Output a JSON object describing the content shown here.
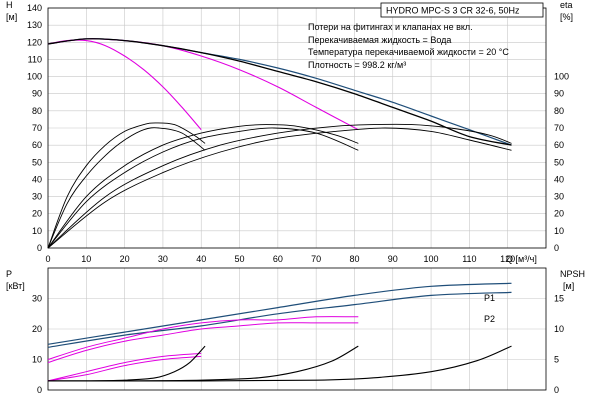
{
  "title": "HYDRO MPC-S 3 CR 32-6, 50Hz",
  "notes": [
    "Потери на фитингах и клапанах не вкл.",
    "Перекачиваемая жидкость = Вода",
    "Температура перекачиваемой жидкости = 20 °C",
    "Плотность = 998.2 кг/м³"
  ],
  "colors": {
    "head": "#000000",
    "system": "#1f4e79",
    "eta": "#e000e0",
    "grid": "#c8c8c8"
  },
  "chart_data": [
    {
      "type": "line",
      "name": "top",
      "y_label_name": "H",
      "y_unit": "[м]",
      "y_right_name": "eta",
      "y_right_unit": "[%]",
      "xlim": [
        0,
        130
      ],
      "ylim": [
        0,
        140
      ],
      "x_ticks": [
        0,
        10,
        20,
        30,
        40,
        50,
        60,
        70,
        80,
        90,
        100,
        110,
        120
      ],
      "x_axis_label": "Q [м³/ч]",
      "y_ticks": [
        0,
        10,
        20,
        30,
        40,
        50,
        60,
        70,
        80,
        90,
        100,
        110,
        120,
        130,
        140
      ],
      "y_right_ticks": [
        0,
        10,
        20,
        30,
        40,
        50,
        60,
        70,
        80,
        90,
        100
      ],
      "series": [
        {
          "role": "system",
          "values": [
            [
              0,
              119
            ],
            [
              10,
              122
            ],
            [
              20,
              121
            ],
            [
              30,
              118
            ],
            [
              40,
              114
            ],
            [
              50,
              110
            ],
            [
              60,
              105
            ],
            [
              70,
              99
            ],
            [
              80,
              92
            ],
            [
              90,
              85
            ],
            [
              100,
              77
            ],
            [
              110,
              69
            ],
            [
              121,
              60
            ]
          ]
        },
        {
          "role": "head-1",
          "values": [
            [
              0,
              119
            ],
            [
              5,
              121
            ],
            [
              10,
              121
            ],
            [
              15,
              118
            ],
            [
              20,
              112
            ],
            [
              25,
              104
            ],
            [
              30,
              94
            ],
            [
              35,
              82
            ],
            [
              40,
              69
            ]
          ]
        },
        {
          "role": "head-2",
          "values": [
            [
              0,
              119
            ],
            [
              10,
              122
            ],
            [
              20,
              121
            ],
            [
              30,
              118
            ],
            [
              40,
              112
            ],
            [
              50,
              104
            ],
            [
              60,
              94
            ],
            [
              70,
              82
            ],
            [
              81,
              69
            ]
          ]
        },
        {
          "role": "head-3",
          "values": [
            [
              0,
              119
            ],
            [
              10,
              122
            ],
            [
              20,
              121
            ],
            [
              30,
              118
            ],
            [
              40,
              114
            ],
            [
              50,
              109
            ],
            [
              60,
              103
            ],
            [
              70,
              97
            ],
            [
              80,
              90
            ],
            [
              90,
              82
            ],
            [
              100,
              74
            ],
            [
              110,
              65
            ],
            [
              121,
              60
            ]
          ]
        },
        {
          "role": "eta",
          "values": [
            [
              0,
              0
            ],
            [
              5,
              30
            ],
            [
              10,
              48
            ],
            [
              15,
              60
            ],
            [
              20,
              68
            ],
            [
              25,
              72
            ],
            [
              28,
              73
            ],
            [
              33,
              72
            ],
            [
              38,
              66
            ],
            [
              41,
              61
            ]
          ]
        },
        {
          "role": "eta",
          "values": [
            [
              0,
              0
            ],
            [
              5,
              26
            ],
            [
              10,
              42
            ],
            [
              15,
              54
            ],
            [
              20,
              63
            ],
            [
              25,
              69
            ],
            [
              29,
              70
            ],
            [
              35,
              67
            ],
            [
              41,
              57
            ]
          ]
        },
        {
          "role": "eta",
          "values": [
            [
              0,
              0
            ],
            [
              10,
              30
            ],
            [
              20,
              48
            ],
            [
              30,
              60
            ],
            [
              40,
              67
            ],
            [
              50,
              71
            ],
            [
              57,
              72
            ],
            [
              65,
              71
            ],
            [
              75,
              66
            ],
            [
              81,
              61
            ]
          ]
        },
        {
          "role": "eta",
          "values": [
            [
              0,
              0
            ],
            [
              10,
              27
            ],
            [
              20,
              44
            ],
            [
              30,
              56
            ],
            [
              40,
              64
            ],
            [
              50,
              68
            ],
            [
              59,
              70
            ],
            [
              70,
              67
            ],
            [
              81,
              57
            ]
          ]
        },
        {
          "role": "eta",
          "values": [
            [
              0,
              0
            ],
            [
              15,
              30
            ],
            [
              30,
              48
            ],
            [
              45,
              60
            ],
            [
              60,
              67
            ],
            [
              75,
              71
            ],
            [
              85,
              72
            ],
            [
              95,
              72
            ],
            [
              105,
              70
            ],
            [
              115,
              66
            ],
            [
              121,
              61
            ]
          ]
        },
        {
          "role": "eta",
          "values": [
            [
              0,
              0
            ],
            [
              15,
              27
            ],
            [
              30,
              44
            ],
            [
              45,
              56
            ],
            [
              60,
              64
            ],
            [
              75,
              68
            ],
            [
              88,
              70
            ],
            [
              100,
              68
            ],
            [
              110,
              63
            ],
            [
              121,
              57
            ]
          ]
        }
      ]
    },
    {
      "type": "line",
      "name": "bottom",
      "y_label_name": "P",
      "y_unit": "[кВт]",
      "y_right_name": "NPSH",
      "y_right_unit": "[м]",
      "xlim": [
        0,
        130
      ],
      "ylim": [
        0,
        40
      ],
      "y_ticks": [
        0,
        10,
        20,
        30
      ],
      "y_right_ticks": [
        0,
        5,
        10,
        15
      ],
      "y_right_lim": [
        0,
        20
      ],
      "series": [
        {
          "name": "P1",
          "role": "system",
          "values": [
            [
              0,
              15
            ],
            [
              20,
              19
            ],
            [
              40,
              23
            ],
            [
              60,
              27
            ],
            [
              80,
              31
            ],
            [
              100,
              34
            ],
            [
              121,
              35
            ]
          ]
        },
        {
          "name": "P2",
          "role": "system",
          "values": [
            [
              0,
              14
            ],
            [
              20,
              18
            ],
            [
              40,
              21
            ],
            [
              60,
              25
            ],
            [
              80,
              28
            ],
            [
              100,
              31
            ],
            [
              121,
              32
            ]
          ]
        },
        {
          "role": "eta",
          "values": [
            [
              0,
              10
            ],
            [
              10,
              14
            ],
            [
              20,
              17
            ],
            [
              30,
              20
            ],
            [
              40,
              22
            ],
            [
              50,
              23
            ],
            [
              60,
              23
            ],
            [
              70,
              24
            ],
            [
              81,
              24
            ]
          ]
        },
        {
          "role": "eta",
          "values": [
            [
              0,
              9
            ],
            [
              10,
              13
            ],
            [
              20,
              16
            ],
            [
              30,
              18
            ],
            [
              40,
              20
            ],
            [
              50,
              21
            ],
            [
              60,
              22
            ],
            [
              70,
              22
            ],
            [
              81,
              22
            ]
          ]
        },
        {
          "role": "eta",
          "values": [
            [
              0,
              3
            ],
            [
              10,
              6
            ],
            [
              20,
              9
            ],
            [
              30,
              11
            ],
            [
              40,
              12
            ]
          ]
        },
        {
          "role": "eta",
          "values": [
            [
              0,
              3
            ],
            [
              10,
              5
            ],
            [
              20,
              8
            ],
            [
              30,
              10
            ],
            [
              40,
              11
            ]
          ]
        },
        {
          "role": "npsh",
          "values": [
            [
              0,
              1.5
            ],
            [
              10,
              1.5
            ],
            [
              20,
              1.6
            ],
            [
              28,
              2.0
            ],
            [
              33,
              3.0
            ],
            [
              37,
              4.5
            ],
            [
              41,
              7.2
            ]
          ]
        },
        {
          "role": "npsh",
          "values": [
            [
              0,
              1.5
            ],
            [
              20,
              1.5
            ],
            [
              40,
              1.6
            ],
            [
              55,
              2.0
            ],
            [
              65,
              3.0
            ],
            [
              74,
              4.7
            ],
            [
              81,
              7.2
            ]
          ]
        },
        {
          "role": "npsh",
          "values": [
            [
              0,
              1.5
            ],
            [
              40,
              1.5
            ],
            [
              70,
              1.6
            ],
            [
              85,
              2.0
            ],
            [
              100,
              3.0
            ],
            [
              112,
              4.8
            ],
            [
              121,
              7.2
            ]
          ]
        }
      ]
    }
  ]
}
